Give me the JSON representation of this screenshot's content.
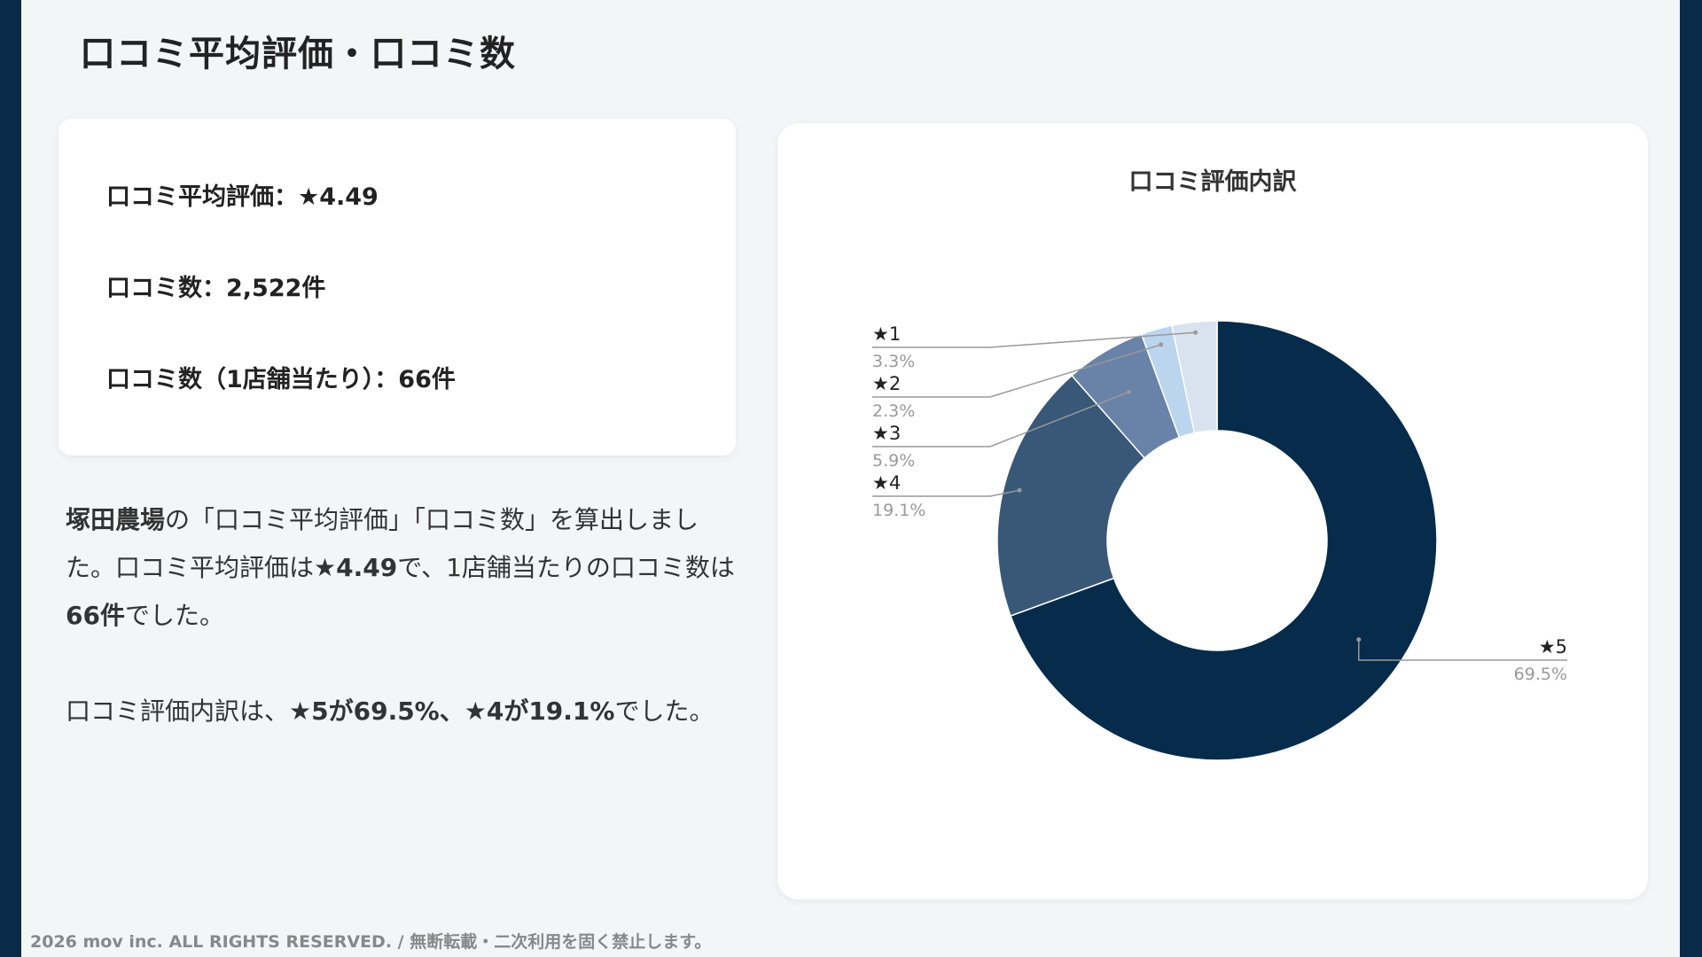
{
  "title": "口コミ平均評価・口コミ数",
  "stats": {
    "avg": "口コミ平均評価：★4.49",
    "count": "口コミ数：2,522件",
    "per_store": "口コミ数（1店舗当たり）：66件"
  },
  "description": {
    "p1_a": "塚田農場",
    "p1_b": "の「口コミ平均評価」「口コミ数」を算出しました。口コミ平均評価は",
    "p1_c": "★4.49",
    "p1_d": "で、1店舗当たりの口コミ数は",
    "p1_e": "66件",
    "p1_f": "でした。",
    "p2_a": "口コミ評価内訳は、",
    "p2_b": "★5が69.5%、★4が19.1%",
    "p2_c": "でした。"
  },
  "footer": "2026 mov inc. ALL RIGHTS RESERVED. / 無断転載・二次利用を固く禁止します。",
  "chart_data": {
    "type": "pie",
    "title": "口コミ評価内訳",
    "donut": true,
    "categories": [
      "★5",
      "★4",
      "★3",
      "★2",
      "★1"
    ],
    "values": [
      69.5,
      19.1,
      5.9,
      2.3,
      3.3
    ],
    "value_labels": [
      "69.5%",
      "19.1%",
      "5.9%",
      "2.3%",
      "3.3%"
    ],
    "colors": [
      "#072b4b",
      "#395878",
      "#6982a8",
      "#bcd5ee",
      "#d9e2ef"
    ]
  }
}
